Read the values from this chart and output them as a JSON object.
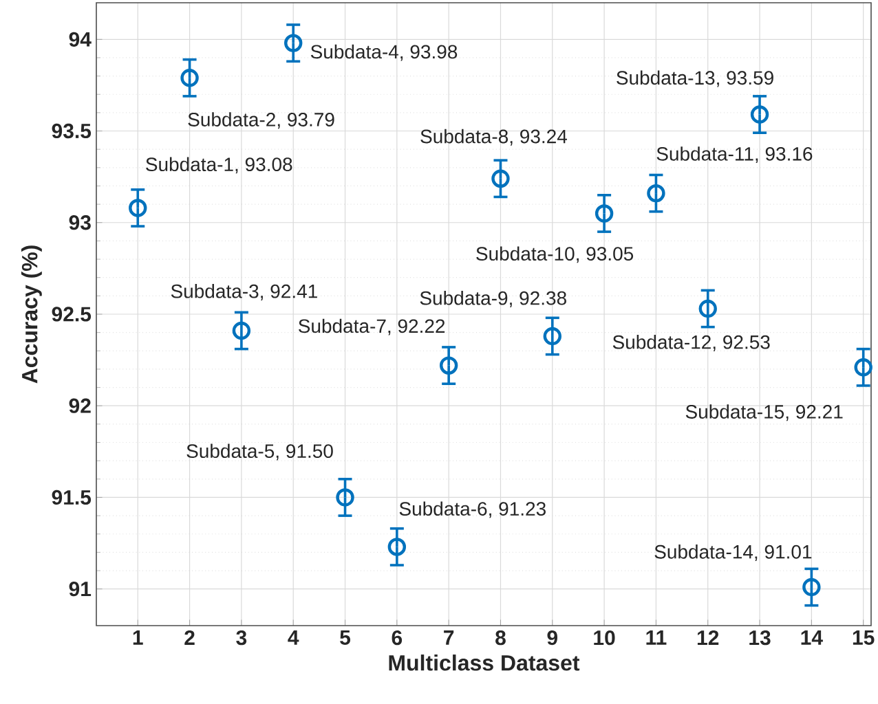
{
  "chart_data": {
    "type": "scatter",
    "xlabel": "Multiclass Dataset",
    "ylabel": "Accuracy (%)",
    "x": [
      1,
      2,
      3,
      4,
      5,
      6,
      7,
      8,
      9,
      10,
      11,
      12,
      13,
      14,
      15
    ],
    "series": [
      {
        "color": "#0072bd",
        "values": [
          93.08,
          93.79,
          92.41,
          93.98,
          91.5,
          91.23,
          92.22,
          93.24,
          92.38,
          93.05,
          93.16,
          92.53,
          93.59,
          91.01,
          92.21
        ],
        "errors": [
          0.1,
          0.1,
          0.1,
          0.1,
          0.1,
          0.1,
          0.1,
          0.1,
          0.1,
          0.1,
          0.1,
          0.1,
          0.1,
          0.1,
          0.1
        ]
      }
    ],
    "marker": "circle",
    "grid": true,
    "xlim": [
      0.2,
      15.15
    ],
    "xticks": [
      1,
      2,
      3,
      4,
      5,
      6,
      7,
      8,
      9,
      10,
      11,
      12,
      13,
      14,
      15
    ],
    "ylim": [
      90.8,
      94.2
    ],
    "yticks": [
      91,
      91.5,
      92,
      92.5,
      93,
      93.5,
      94
    ],
    "annotations": [
      {
        "text": "Subdata-1, 93.08",
        "x": 1,
        "y": 93.08
      },
      {
        "text": "Subdata-2, 93.79",
        "x": 2,
        "y": 93.79
      },
      {
        "text": "Subdata-3, 92.41",
        "x": 3,
        "y": 92.41
      },
      {
        "text": "Subdata-4, 93.98",
        "x": 4,
        "y": 93.98
      },
      {
        "text": "Subdata-5, 91.50",
        "x": 5,
        "y": 91.5
      },
      {
        "text": "Subdata-6, 91.23",
        "x": 6,
        "y": 91.23
      },
      {
        "text": "Subdata-7, 92.22",
        "x": 7,
        "y": 92.22
      },
      {
        "text": "Subdata-8, 93.24",
        "x": 8,
        "y": 93.24
      },
      {
        "text": "Subdata-9, 92.38",
        "x": 9,
        "y": 92.38
      },
      {
        "text": "Subdata-10, 93.05",
        "x": 10,
        "y": 93.05
      },
      {
        "text": "Subdata-11, 93.16",
        "x": 11,
        "y": 93.16
      },
      {
        "text": "Subdata-12, 92.53",
        "x": 12,
        "y": 92.53
      },
      {
        "text": "Subdata-13, 93.59",
        "x": 13,
        "y": 93.59
      },
      {
        "text": "Subdata-14, 91.01",
        "x": 14,
        "y": 91.01
      },
      {
        "text": "Subdata-15, 92.21",
        "x": 15,
        "y": 92.21
      }
    ]
  }
}
